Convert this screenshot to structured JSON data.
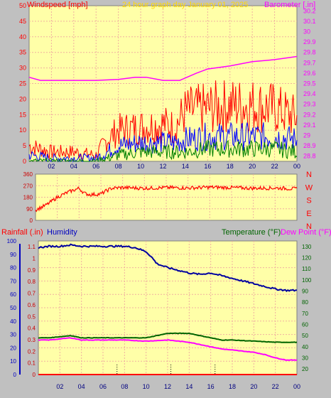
{
  "header": {
    "windspeed_label": "Windspeed [mph]",
    "title": "24 hour graph day   January 01, 2025",
    "barometer_label": "Barometer [.in]"
  },
  "colors": {
    "background": "#c0c0c0",
    "plot_bg": "#ffffa8",
    "grid": "#f0b0a0",
    "wind_gust": "#ff0000",
    "wind_avg": "#0000ff",
    "wind_low": "#008000",
    "barometer": "#ff00ff",
    "direction": "#ff0000",
    "rain": "#ff0000",
    "humidity": "#0000a0",
    "temperature": "#006400",
    "dewpoint": "#ff00ff",
    "title": "#ffd700"
  },
  "chart_data": [
    {
      "type": "line",
      "id": "wind-baro",
      "title": "24 hour graph day   January 01, 2025",
      "xlabel": "",
      "x_ticks": [
        "02",
        "04",
        "06",
        "08",
        "10",
        "12",
        "14",
        "16",
        "18",
        "20",
        "22",
        "00"
      ],
      "xlim": [
        0,
        24
      ],
      "ylabel_left": "Windspeed [mph]",
      "ylim_left": [
        0,
        50
      ],
      "y_ticks_left": [
        0,
        5,
        10,
        15,
        20,
        25,
        30,
        35,
        40,
        45,
        50
      ],
      "ylabel_right": "Barometer [.in]",
      "ylim_right": [
        28.75,
        30.25
      ],
      "y_ticks_right": [
        28.8,
        28.9,
        29,
        29.1,
        29.2,
        29.3,
        29.4,
        29.5,
        29.6,
        29.7,
        29.8,
        29.9,
        30,
        30.1,
        30.2
      ],
      "grid": true,
      "series": [
        {
          "axis": "left",
          "color": "#ff0000",
          "x": [
            0,
            2,
            4,
            6,
            7,
            8,
            10,
            12,
            13,
            14,
            16,
            18,
            20,
            22,
            24
          ],
          "values": [
            5,
            3,
            3,
            2,
            7,
            10,
            11,
            12,
            11,
            16,
            17,
            18,
            18,
            17,
            14
          ]
        },
        {
          "axis": "left",
          "color": "#0000ff",
          "x": [
            0,
            2,
            4,
            6,
            7,
            8,
            10,
            12,
            13,
            14,
            16,
            18,
            20,
            22,
            24
          ],
          "values": [
            2,
            1,
            1,
            1,
            3,
            5,
            6,
            6,
            6,
            7,
            8,
            8,
            8,
            8,
            7
          ]
        },
        {
          "axis": "left",
          "color": "#008000",
          "x": [
            0,
            2,
            4,
            6,
            7,
            8,
            10,
            12,
            13,
            14,
            16,
            18,
            20,
            22,
            24
          ],
          "values": [
            0,
            0,
            0,
            0,
            1,
            2,
            3,
            3,
            3,
            3,
            4,
            4,
            4,
            4,
            3
          ]
        },
        {
          "axis": "right",
          "color": "#ff00ff",
          "x": [
            0,
            1,
            2,
            4,
            6,
            8,
            9.5,
            10.5,
            12,
            13.5,
            15,
            16,
            18,
            20,
            22,
            24
          ],
          "values": [
            29.56,
            29.53,
            29.53,
            29.53,
            29.53,
            29.54,
            29.56,
            29.56,
            29.53,
            29.53,
            29.6,
            29.64,
            29.67,
            29.71,
            29.73,
            29.76
          ]
        }
      ]
    },
    {
      "type": "line",
      "id": "wind-direction",
      "x_ticks": [],
      "xlim": [
        0,
        24
      ],
      "ylim": [
        0,
        360
      ],
      "y_ticks": [
        0,
        90,
        180,
        270,
        360
      ],
      "compass_labels": [
        "N",
        "W",
        "S",
        "E",
        "N"
      ],
      "grid": true,
      "series": [
        {
          "color": "#ff0000",
          "x": [
            0,
            0.5,
            1,
            1.5,
            2,
            3,
            4,
            4.5,
            5,
            6,
            6.5,
            7,
            8,
            10,
            12,
            14,
            16,
            18,
            20,
            22,
            24
          ],
          "values": [
            80,
            100,
            120,
            150,
            180,
            220,
            250,
            210,
            200,
            205,
            230,
            250,
            255,
            250,
            255,
            252,
            258,
            255,
            250,
            252,
            245
          ]
        }
      ]
    },
    {
      "type": "line",
      "id": "rain-humidity-temp",
      "legend": [
        "Rainfall (.in)",
        "Humidity",
        "Temperature (°F)",
        "Dew Point (°F)"
      ],
      "x_ticks": [
        "02",
        "04",
        "06",
        "08",
        "10",
        "12",
        "14",
        "16",
        "18",
        "20",
        "22",
        "00"
      ],
      "xlim": [
        0,
        24
      ],
      "ylim_left_humidity": [
        0,
        100
      ],
      "y_ticks_left_humidity": [
        0,
        10,
        20,
        30,
        40,
        50,
        60,
        70,
        80,
        90,
        100
      ],
      "ylim_left_rain": [
        0,
        1.15
      ],
      "y_ticks_left_rain": [
        0,
        0.1,
        0.2,
        0.3,
        0.4,
        0.5,
        0.6,
        0.7,
        0.8,
        0.9,
        1,
        1.1
      ],
      "ylim_right": [
        15,
        135
      ],
      "y_ticks_right": [
        20,
        30,
        40,
        50,
        60,
        70,
        80,
        90,
        100,
        110,
        120,
        130
      ],
      "grid": true,
      "series": [
        {
          "axis": "humidity",
          "color": "#0000a0",
          "x": [
            0,
            1,
            2,
            3,
            4,
            6,
            8,
            9,
            10,
            10.5,
            11,
            12,
            13,
            14,
            15,
            16,
            17,
            18,
            19,
            20,
            21,
            22,
            23,
            24
          ],
          "values": [
            95,
            96,
            96,
            97,
            96,
            96,
            96,
            95,
            92,
            88,
            83,
            80,
            78,
            76,
            75,
            76,
            74,
            72,
            70,
            68,
            66,
            64,
            63,
            63
          ]
        },
        {
          "axis": "right",
          "color": "#006400",
          "x": [
            0,
            1,
            2,
            3,
            4,
            6,
            8,
            10,
            11,
            12,
            13,
            14,
            15,
            16,
            17,
            18,
            20,
            22,
            24
          ],
          "values": [
            48,
            48,
            49,
            50,
            48,
            48,
            48,
            48,
            50,
            52,
            52,
            52,
            50,
            48,
            46,
            46,
            45,
            44,
            44
          ]
        },
        {
          "axis": "right",
          "color": "#ff00ff",
          "x": [
            0,
            1,
            2,
            3,
            4,
            6,
            8,
            10,
            12,
            13,
            14,
            15,
            16,
            17,
            18,
            20,
            21,
            22,
            23,
            24
          ],
          "values": [
            46,
            46,
            47,
            48,
            46,
            46,
            46,
            45,
            46,
            45,
            44,
            42,
            40,
            38,
            37,
            35,
            33,
            30,
            28,
            28
          ]
        },
        {
          "axis": "rain",
          "color": "#ff0000",
          "x": [
            0,
            24
          ],
          "values": [
            0,
            0
          ]
        }
      ],
      "rain_events_x": [
        7.3,
        12.3,
        16.4
      ]
    }
  ]
}
